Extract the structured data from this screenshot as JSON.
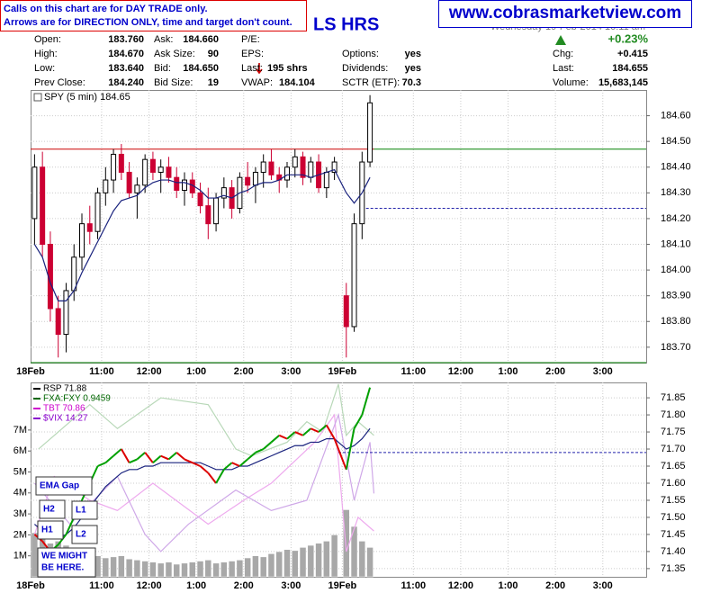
{
  "header": {
    "notice": [
      "Calls on this chart are for DAY TRADE only.",
      "Arrows are for DIRECTION ONLY, time and target don't count."
    ],
    "title": "LS HRS",
    "date": "Wednesday 19-Feb-2014 10:11 am",
    "website": "www.cobrasmarketview.com",
    "change": "+0.23%",
    "stats": [
      [
        {
          "label": "Open:",
          "value": "183.760"
        },
        {
          "label": "High:",
          "value": "184.670"
        },
        {
          "label": "Low:",
          "value": "183.640"
        },
        {
          "label": "Prev Close:",
          "value": "184.240"
        }
      ],
      [
        {
          "label": "Ask:",
          "value": "184.660"
        },
        {
          "label": "Ask Size:",
          "value": "90"
        },
        {
          "label": "Bid:",
          "value": "184.650"
        },
        {
          "label": "Bid Size:",
          "value": "19"
        }
      ],
      [
        {
          "label": "P/E:"
        },
        {
          "label": "EPS:"
        },
        {
          "label": "Last:",
          "value": "195 shrs"
        },
        {
          "label": "VWAP:",
          "value": "184.104"
        }
      ],
      [
        {
          "label": "Options:",
          "value": "yes"
        },
        {
          "label": "Dividends:",
          "value": "yes"
        },
        {
          "label": "SCTR (ETF):",
          "value": "70.3"
        }
      ],
      [
        {
          "label": "Chg:",
          "value": "+0.415"
        },
        {
          "label": "Last:",
          "value": "184.655"
        },
        {
          "label": "Volume:",
          "value": "15,683,145"
        }
      ]
    ]
  },
  "chart_data": [
    {
      "type": "candlestick",
      "title": "SPY (5 min) 184.65",
      "x": [
        1,
        3,
        5,
        7,
        9,
        11,
        13,
        15,
        17,
        19,
        21,
        23,
        25,
        27,
        29,
        31,
        33,
        35,
        37,
        39,
        41,
        43,
        45,
        47,
        49,
        51,
        53,
        55,
        57,
        59,
        61,
        63,
        65,
        67,
        69,
        71,
        73,
        75,
        77,
        80,
        82,
        84,
        86
      ],
      "open": [
        184.2,
        184.4,
        184.1,
        183.85,
        183.75,
        183.92,
        184.05,
        184.18,
        184.15,
        184.3,
        184.35,
        184.45,
        184.38,
        184.3,
        184.33,
        184.43,
        184.38,
        184.4,
        184.36,
        184.31,
        184.35,
        184.3,
        184.25,
        184.18,
        184.28,
        184.32,
        184.24,
        184.36,
        184.33,
        184.38,
        184.42,
        184.37,
        184.35,
        184.4,
        184.44,
        184.36,
        184.42,
        184.32,
        184.38,
        183.9,
        183.78,
        184.18,
        184.42
      ],
      "high": [
        184.45,
        184.46,
        184.15,
        183.9,
        183.95,
        184.1,
        184.22,
        184.25,
        184.32,
        184.4,
        184.47,
        184.49,
        184.42,
        184.36,
        184.45,
        184.46,
        184.43,
        184.44,
        184.4,
        184.38,
        184.38,
        184.34,
        184.32,
        184.3,
        184.36,
        184.35,
        184.38,
        184.42,
        184.4,
        184.45,
        184.47,
        184.4,
        184.42,
        184.47,
        184.46,
        184.44,
        184.45,
        184.4,
        184.44,
        183.95,
        184.22,
        184.46,
        184.68
      ],
      "low": [
        184.1,
        184.05,
        183.8,
        183.66,
        183.68,
        183.88,
        184.0,
        184.1,
        184.12,
        184.25,
        184.3,
        184.35,
        184.28,
        184.2,
        184.3,
        184.35,
        184.3,
        184.34,
        184.28,
        184.25,
        184.28,
        184.22,
        184.12,
        184.15,
        184.24,
        184.2,
        184.22,
        184.3,
        184.26,
        184.32,
        184.35,
        184.3,
        184.32,
        184.36,
        184.33,
        184.34,
        184.3,
        184.28,
        184.35,
        183.66,
        183.76,
        184.12,
        184.4
      ],
      "close": [
        184.4,
        184.1,
        183.85,
        183.75,
        183.92,
        184.05,
        184.18,
        184.15,
        184.3,
        184.35,
        184.45,
        184.38,
        184.3,
        184.33,
        184.43,
        184.38,
        184.4,
        184.36,
        184.31,
        184.35,
        184.3,
        184.25,
        184.18,
        184.28,
        184.32,
        184.24,
        184.36,
        184.33,
        184.38,
        184.42,
        184.37,
        184.35,
        184.4,
        184.44,
        184.36,
        184.42,
        184.32,
        184.38,
        184.42,
        183.78,
        184.18,
        184.42,
        184.65
      ],
      "ema": [
        184.1,
        184.05,
        183.95,
        183.88,
        183.88,
        183.92,
        183.99,
        184.05,
        184.11,
        184.17,
        184.23,
        184.27,
        184.28,
        184.29,
        184.32,
        184.34,
        184.35,
        184.35,
        184.34,
        184.34,
        184.33,
        184.31,
        184.28,
        184.28,
        184.29,
        184.28,
        184.3,
        184.31,
        184.33,
        184.34,
        184.34,
        184.35,
        184.37,
        184.37,
        184.37,
        184.36,
        184.37,
        184.38,
        184.39,
        184.3,
        184.26,
        184.3,
        184.36
      ],
      "ema_color": "#1a237e",
      "up_color": "#000000",
      "down_color": "#cc0033",
      "hlines": [
        {
          "value": 184.47,
          "color": "#cc0000",
          "x": [
            0,
            87
          ]
        },
        {
          "value": 184.47,
          "color": "#008000",
          "x": [
            87,
            156
          ]
        },
        {
          "value": 184.24,
          "color": "#2222aa",
          "dash": true,
          "x": [
            85,
            156
          ]
        },
        {
          "value": 183.64,
          "color": "#008000",
          "x": [
            0,
            156
          ]
        }
      ],
      "xlim": [
        0,
        156
      ],
      "xticks": [
        {
          "value": 0,
          "label": "18Feb"
        },
        {
          "value": 18,
          "label": "11:00"
        },
        {
          "value": 30,
          "label": "12:00"
        },
        {
          "value": 42,
          "label": "1:00"
        },
        {
          "value": 54,
          "label": "2:00"
        },
        {
          "value": 66,
          "label": "3:00"
        },
        {
          "value": 79,
          "label": "19Feb"
        },
        {
          "value": 97,
          "label": "11:00"
        },
        {
          "value": 109,
          "label": "12:00"
        },
        {
          "value": 121,
          "label": "1:00"
        },
        {
          "value": 133,
          "label": "2:00"
        },
        {
          "value": 145,
          "label": "3:00"
        }
      ],
      "ylim": [
        183.64,
        184.7
      ],
      "yticks": [
        {
          "value": 183.7,
          "label": "183.70"
        },
        {
          "value": 183.8,
          "label": "183.80"
        },
        {
          "value": 183.9,
          "label": "183.90"
        },
        {
          "value": 184.0,
          "label": "184.00"
        },
        {
          "value": 184.1,
          "label": "184.10"
        },
        {
          "value": 184.2,
          "label": "184.20"
        },
        {
          "value": 184.3,
          "label": "184.30"
        },
        {
          "value": 184.4,
          "label": "184.40"
        },
        {
          "value": 184.5,
          "label": "184.50"
        },
        {
          "value": 184.6,
          "label": "184.60"
        }
      ],
      "grid": true
    },
    {
      "type": "line",
      "x": [
        1,
        3,
        5,
        7,
        9,
        11,
        13,
        15,
        17,
        19,
        21,
        23,
        25,
        27,
        29,
        31,
        33,
        35,
        37,
        39,
        41,
        43,
        45,
        47,
        49,
        51,
        53,
        55,
        57,
        59,
        61,
        63,
        65,
        67,
        69,
        71,
        73,
        75,
        77,
        80,
        82,
        84,
        86
      ],
      "series": [
        {
          "name": "RSP 71.88",
          "color": "#000000",
          "axis": "y2",
          "values": [
            71.45,
            71.43,
            71.4,
            71.42,
            71.45,
            71.5,
            71.55,
            71.6,
            71.65,
            71.66,
            71.68,
            71.7,
            71.66,
            71.67,
            71.69,
            71.66,
            71.68,
            71.67,
            71.69,
            71.67,
            71.66,
            71.65,
            71.63,
            71.6,
            71.64,
            71.66,
            71.65,
            71.67,
            71.69,
            71.7,
            71.72,
            71.74,
            71.73,
            71.75,
            71.74,
            71.76,
            71.75,
            71.77,
            71.73,
            71.64,
            71.76,
            71.8,
            71.88
          ]
        },
        {
          "name": "FXA:FXY 0.9459",
          "color": "#006600",
          "line_color": "#b8d8b8",
          "axis": "y2",
          "x": [
            2,
            15,
            22,
            33,
            45,
            52,
            56,
            65,
            70,
            74,
            78,
            80,
            83,
            87
          ],
          "values": [
            71.7,
            71.83,
            71.76,
            71.85,
            71.83,
            71.7,
            71.68,
            71.72,
            71.78,
            71.75,
            71.89,
            71.74,
            71.78,
            71.74
          ]
        },
        {
          "name": "TBT 70.86",
          "color": "#cc00cc",
          "line_color": "#eeaaee",
          "axis": "y2",
          "x": [
            1,
            6,
            15,
            22,
            31,
            45,
            54,
            61,
            72,
            77,
            80,
            83,
            87
          ],
          "values": [
            71.45,
            71.62,
            71.55,
            71.52,
            71.6,
            71.48,
            71.55,
            71.6,
            71.72,
            71.8,
            71.4,
            71.5,
            71.46
          ]
        },
        {
          "name": "$VIX 14.27",
          "color": "#8800cc",
          "line_color": "#cfa8e8",
          "axis": "y2",
          "x": [
            1,
            10,
            22,
            29,
            33,
            40,
            52,
            61,
            70,
            78,
            82,
            86,
            87
          ],
          "values": [
            71.6,
            71.48,
            71.62,
            71.45,
            71.4,
            71.48,
            71.58,
            71.52,
            71.55,
            71.8,
            71.55,
            71.72,
            71.57
          ]
        }
      ],
      "ema": [
        71.48,
        71.46,
        71.44,
        71.44,
        71.45,
        71.47,
        71.5,
        71.53,
        71.56,
        71.59,
        71.61,
        71.63,
        71.64,
        71.64,
        71.65,
        71.65,
        71.66,
        71.66,
        71.66,
        71.66,
        71.66,
        71.66,
        71.65,
        71.64,
        71.64,
        71.64,
        71.65,
        71.65,
        71.66,
        71.67,
        71.68,
        71.69,
        71.7,
        71.71,
        71.71,
        71.72,
        71.72,
        71.73,
        71.73,
        71.7,
        71.71,
        71.73,
        71.76
      ],
      "ema_color": "#1a237e",
      "up_color": "#00a000",
      "down_color": "#dd0000",
      "volume": [
        2100000,
        1900000,
        1600000,
        1700000,
        1500000,
        1300000,
        1200000,
        1100000,
        1000000,
        900000,
        950000,
        1000000,
        850000,
        800000,
        750000,
        700000,
        650000,
        700000,
        600000,
        650000,
        700000,
        750000,
        800000,
        650000,
        700000,
        750000,
        800000,
        900000,
        1000000,
        950000,
        1100000,
        1200000,
        1300000,
        1250000,
        1400000,
        1500000,
        1600000,
        1700000,
        2000000,
        3200000,
        2400000,
        1700000,
        1400000
      ],
      "volume_color": "#a8a8a8",
      "hlines": [
        {
          "value": 71.69,
          "color": "#2222aa",
          "dash": true,
          "x": [
            78,
            156
          ]
        }
      ],
      "xlim": [
        0,
        156
      ],
      "xticks": [
        {
          "value": 0,
          "label": "18Feb"
        },
        {
          "value": 18,
          "label": "11:00"
        },
        {
          "value": 30,
          "label": "12:00"
        },
        {
          "value": 42,
          "label": "1:00"
        },
        {
          "value": 54,
          "label": "2:00"
        },
        {
          "value": 66,
          "label": "3:00"
        },
        {
          "value": 79,
          "label": "19Feb"
        },
        {
          "value": 97,
          "label": "11:00"
        },
        {
          "value": 109,
          "label": "12:00"
        },
        {
          "value": 121,
          "label": "1:00"
        },
        {
          "value": 133,
          "label": "2:00"
        },
        {
          "value": 145,
          "label": "3:00"
        }
      ],
      "ylim": [
        0,
        9270000
      ],
      "yticks": [
        {
          "value": 1000000,
          "label": "1M"
        },
        {
          "value": 2000000,
          "label": "2M"
        },
        {
          "value": 3000000,
          "label": "3M"
        },
        {
          "value": 4000000,
          "label": "4M"
        },
        {
          "value": 5000000,
          "label": "5M"
        },
        {
          "value": 6000000,
          "label": "6M"
        },
        {
          "value": 7000000,
          "label": "7M"
        }
      ],
      "y2lim": [
        71.326,
        71.895
      ],
      "y2ticks": [
        {
          "value": 71.35,
          "label": "71.35"
        },
        {
          "value": 71.4,
          "label": "71.40"
        },
        {
          "value": 71.45,
          "label": "71.45"
        },
        {
          "value": 71.5,
          "label": "71.50"
        },
        {
          "value": 71.55,
          "label": "71.55"
        },
        {
          "value": 71.6,
          "label": "71.60"
        },
        {
          "value": 71.65,
          "label": "71.65"
        },
        {
          "value": 71.7,
          "label": "71.70"
        },
        {
          "value": 71.75,
          "label": "71.75"
        },
        {
          "value": 71.8,
          "label": "71.80"
        },
        {
          "value": 71.85,
          "label": "71.85"
        }
      ],
      "grid": true,
      "annotations": {
        "ema_gap": "EMA Gap",
        "h2": "H2",
        "l1": "L1",
        "h1": "H1",
        "l2": "L2",
        "here": [
          "WE MIGHT",
          "BE HERE."
        ]
      }
    }
  ]
}
